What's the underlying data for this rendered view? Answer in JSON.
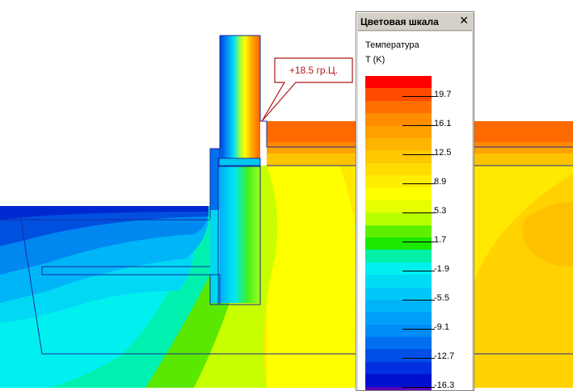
{
  "field": {
    "callout": "+18.5 гр.Ц."
  },
  "color_scale": {
    "title": "Цветовая шкала",
    "close_glyph": "✕",
    "parameter": "Температура",
    "unit": "T (K)",
    "ticks": [
      "19.7",
      "16.1",
      "12.5",
      "8.9",
      "5.3",
      "1.7",
      "-1.9",
      "-5.5",
      "-9.1",
      "-12.7",
      "-16.3"
    ],
    "band_colors": [
      "#ff0000",
      "#ff4a00",
      "#ff6f00",
      "#ff8d00",
      "#ffa000",
      "#ffb400",
      "#ffc800",
      "#ffdb00",
      "#ffee00",
      "#ffff00",
      "#e6ff00",
      "#b8ff00",
      "#5cf000",
      "#1ce800",
      "#00f0a8",
      "#00f0f0",
      "#00dcf4",
      "#00c8f8",
      "#00b4fa",
      "#00a0fa",
      "#008cf5",
      "#0070f0",
      "#0050e8",
      "#0030e0",
      "#0010d0",
      "#5a00b8"
    ]
  }
}
